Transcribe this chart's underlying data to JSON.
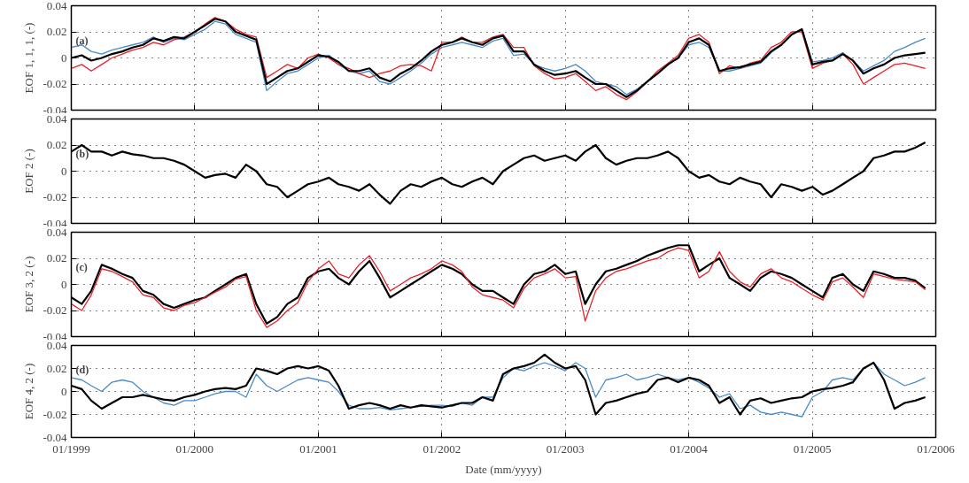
{
  "chart_data": [
    {
      "type": "line",
      "ylabel": "EOF 1, 1, 1, (-)",
      "annotations": [
        "(a)"
      ],
      "xlim": [
        "1999-01",
        "2006-01"
      ],
      "xticks": [
        {
          "value": "1999-01",
          "label": null
        },
        {
          "value": "2000-01",
          "label": null
        },
        {
          "value": "2001-01",
          "label": null
        },
        {
          "value": "2002-01",
          "label": null
        },
        {
          "value": "2003-01",
          "label": null
        },
        {
          "value": "2004-01",
          "label": null
        },
        {
          "value": "2005-01",
          "label": null
        },
        {
          "value": "2006-01",
          "label": null
        }
      ],
      "ylim": [
        -0.04,
        0.04
      ],
      "yticks": [
        -0.04,
        -0.02,
        0,
        0.02,
        0.04
      ],
      "grid": true,
      "line_style": "solid",
      "tick_labels": "y",
      "x": [
        "1999-01",
        "1999-02",
        "1999-03",
        "1999-04",
        "1999-05",
        "1999-06",
        "1999-07",
        "1999-08",
        "1999-09",
        "1999-10",
        "1999-11",
        "1999-12",
        "2000-01",
        "2000-02",
        "2000-03",
        "2000-04",
        "2000-05",
        "2000-06",
        "2000-07",
        "2000-08",
        "2000-09",
        "2000-10",
        "2000-11",
        "2000-12",
        "2001-01",
        "2001-02",
        "2001-03",
        "2001-04",
        "2001-05",
        "2001-06",
        "2001-07",
        "2001-08",
        "2001-09",
        "2001-10",
        "2001-11",
        "2001-12",
        "2002-01",
        "2002-02",
        "2002-03",
        "2002-04",
        "2002-05",
        "2002-06",
        "2002-07",
        "2002-08",
        "2002-09",
        "2002-10",
        "2002-11",
        "2002-12",
        "2003-01",
        "2003-02",
        "2003-03",
        "2003-04",
        "2003-05",
        "2003-06",
        "2003-07",
        "2003-08",
        "2003-09",
        "2003-10",
        "2003-11",
        "2003-12",
        "2004-01",
        "2004-02",
        "2004-03",
        "2004-04",
        "2004-05",
        "2004-06",
        "2004-07",
        "2004-08",
        "2004-09",
        "2004-10",
        "2004-11",
        "2004-12",
        "2005-01",
        "2005-02",
        "2005-03",
        "2005-04",
        "2005-05",
        "2005-06",
        "2005-07",
        "2005-08",
        "2005-09",
        "2005-10",
        "2005-11",
        "2005-12"
      ],
      "series": [
        {
          "color": "#4a8ac8",
          "values": [
            0.008,
            0.01,
            0.005,
            0.003,
            0.006,
            0.008,
            0.01,
            0.012,
            0.016,
            0.012,
            0.015,
            0.014,
            0.018,
            0.022,
            0.028,
            0.026,
            0.018,
            0.015,
            0.012,
            -0.025,
            -0.018,
            -0.012,
            -0.01,
            -0.005,
            0.0,
            0.002,
            -0.005,
            -0.01,
            -0.012,
            -0.01,
            -0.018,
            -0.02,
            -0.015,
            -0.01,
            -0.004,
            0.003,
            0.008,
            0.01,
            0.012,
            0.01,
            0.008,
            0.013,
            0.015,
            0.002,
            0.003,
            -0.005,
            -0.008,
            -0.01,
            -0.008,
            -0.005,
            -0.01,
            -0.018,
            -0.02,
            -0.022,
            -0.028,
            -0.024,
            -0.018,
            -0.012,
            -0.005,
            0.0,
            0.01,
            0.012,
            0.008,
            -0.01,
            -0.01,
            -0.008,
            -0.006,
            -0.004,
            0.004,
            0.01,
            0.018,
            0.022,
            -0.003,
            -0.002,
            0.0,
            0.004,
            -0.002,
            -0.01,
            -0.006,
            -0.002,
            0.005,
            0.008,
            0.012,
            0.015
          ]
        },
        {
          "color": "#e8222a",
          "values": [
            -0.008,
            -0.005,
            -0.01,
            -0.005,
            0.0,
            0.003,
            0.006,
            0.008,
            0.012,
            0.01,
            0.014,
            0.016,
            0.02,
            0.026,
            0.031,
            0.028,
            0.022,
            0.018,
            0.016,
            -0.015,
            -0.01,
            -0.005,
            -0.008,
            0.0,
            0.003,
            0.0,
            -0.005,
            -0.008,
            -0.012,
            -0.015,
            -0.012,
            -0.01,
            -0.006,
            -0.005,
            -0.006,
            -0.01,
            0.012,
            0.012,
            0.016,
            0.012,
            0.012,
            0.016,
            0.018,
            0.008,
            0.008,
            -0.006,
            -0.012,
            -0.016,
            -0.015,
            -0.012,
            -0.018,
            -0.025,
            -0.022,
            -0.028,
            -0.032,
            -0.026,
            -0.018,
            -0.01,
            -0.004,
            0.002,
            0.015,
            0.018,
            0.012,
            -0.012,
            -0.006,
            -0.008,
            -0.004,
            -0.002,
            0.008,
            0.012,
            0.02,
            0.02,
            -0.008,
            -0.004,
            -0.002,
            0.003,
            -0.005,
            -0.02,
            -0.015,
            -0.01,
            -0.005,
            -0.004,
            -0.006,
            -0.008
          ]
        },
        {
          "color": "#000000",
          "values": [
            0.0,
            0.002,
            -0.002,
            0.0,
            0.003,
            0.005,
            0.008,
            0.01,
            0.015,
            0.013,
            0.016,
            0.015,
            0.02,
            0.025,
            0.03,
            0.028,
            0.02,
            0.017,
            0.014,
            -0.02,
            -0.015,
            -0.01,
            -0.008,
            -0.003,
            0.002,
            0.001,
            -0.003,
            -0.01,
            -0.01,
            -0.008,
            -0.015,
            -0.018,
            -0.012,
            -0.008,
            -0.002,
            0.005,
            0.01,
            0.012,
            0.015,
            0.012,
            0.01,
            0.015,
            0.017,
            0.005,
            0.005,
            -0.005,
            -0.01,
            -0.013,
            -0.012,
            -0.01,
            -0.015,
            -0.02,
            -0.02,
            -0.025,
            -0.03,
            -0.025,
            -0.018,
            -0.012,
            -0.005,
            0.0,
            0.012,
            0.015,
            0.01,
            -0.01,
            -0.008,
            -0.007,
            -0.005,
            -0.003,
            0.005,
            0.01,
            0.018,
            0.022,
            -0.005,
            -0.003,
            -0.002,
            0.003,
            -0.002,
            -0.012,
            -0.008,
            -0.005,
            0.0,
            0.002,
            0.003,
            0.004
          ]
        }
      ]
    },
    {
      "type": "line",
      "ylabel": "EOF 2 (-)",
      "annotations": [
        "(b)"
      ],
      "xlim": [
        "1999-01",
        "2006-01"
      ],
      "xticks": [
        {
          "value": "1999-01",
          "label": null
        },
        {
          "value": "2000-01",
          "label": null
        },
        {
          "value": "2001-01",
          "label": null
        },
        {
          "value": "2002-01",
          "label": null
        },
        {
          "value": "2003-01",
          "label": null
        },
        {
          "value": "2004-01",
          "label": null
        },
        {
          "value": "2005-01",
          "label": null
        },
        {
          "value": "2006-01",
          "label": null
        }
      ],
      "ylim": [
        -0.04,
        0.04
      ],
      "yticks": [
        -0.04,
        -0.02,
        0,
        0.02,
        0.04
      ],
      "grid": true,
      "line_style": "solid",
      "tick_labels": "y",
      "x": [
        "1999-01",
        "1999-02",
        "1999-03",
        "1999-04",
        "1999-05",
        "1999-06",
        "1999-07",
        "1999-08",
        "1999-09",
        "1999-10",
        "1999-11",
        "1999-12",
        "2000-01",
        "2000-02",
        "2000-03",
        "2000-04",
        "2000-05",
        "2000-06",
        "2000-07",
        "2000-08",
        "2000-09",
        "2000-10",
        "2000-11",
        "2000-12",
        "2001-01",
        "2001-02",
        "2001-03",
        "2001-04",
        "2001-05",
        "2001-06",
        "2001-07",
        "2001-08",
        "2001-09",
        "2001-10",
        "2001-11",
        "2001-12",
        "2002-01",
        "2002-02",
        "2002-03",
        "2002-04",
        "2002-05",
        "2002-06",
        "2002-07",
        "2002-08",
        "2002-09",
        "2002-10",
        "2002-11",
        "2002-12",
        "2003-01",
        "2003-02",
        "2003-03",
        "2003-04",
        "2003-05",
        "2003-06",
        "2003-07",
        "2003-08",
        "2003-09",
        "2003-10",
        "2003-11",
        "2003-12",
        "2004-01",
        "2004-02",
        "2004-03",
        "2004-04",
        "2004-05",
        "2004-06",
        "2004-07",
        "2004-08",
        "2004-09",
        "2004-10",
        "2004-11",
        "2004-12",
        "2005-01",
        "2005-02",
        "2005-03",
        "2005-04",
        "2005-05",
        "2005-06",
        "2005-07",
        "2005-08",
        "2005-09",
        "2005-10",
        "2005-11",
        "2005-12"
      ],
      "series": [
        {
          "color": "#000000",
          "values": [
            0.015,
            0.02,
            0.015,
            0.015,
            0.012,
            0.015,
            0.013,
            0.012,
            0.01,
            0.01,
            0.008,
            0.005,
            0.0,
            -0.005,
            -0.003,
            -0.002,
            -0.005,
            0.005,
            0.0,
            -0.01,
            -0.012,
            -0.02,
            -0.015,
            -0.01,
            -0.008,
            -0.005,
            -0.01,
            -0.012,
            -0.015,
            -0.01,
            -0.018,
            -0.025,
            -0.015,
            -0.01,
            -0.012,
            -0.008,
            -0.005,
            -0.01,
            -0.012,
            -0.008,
            -0.005,
            -0.01,
            0.0,
            0.005,
            0.01,
            0.012,
            0.008,
            0.01,
            0.012,
            0.008,
            0.015,
            0.02,
            0.01,
            0.005,
            0.008,
            0.01,
            0.01,
            0.012,
            0.015,
            0.01,
            0.0,
            -0.005,
            -0.003,
            -0.008,
            -0.01,
            -0.005,
            -0.008,
            -0.01,
            -0.02,
            -0.01,
            -0.012,
            -0.015,
            -0.012,
            -0.018,
            -0.015,
            -0.01,
            -0.005,
            0.0,
            0.01,
            0.012,
            0.015,
            0.015,
            0.018,
            0.022
          ]
        }
      ]
    },
    {
      "type": "line",
      "ylabel": "EOF 3, 2 (-)",
      "annotations": [
        "(c)"
      ],
      "xlim": [
        "1999-01",
        "2006-01"
      ],
      "xticks": [
        {
          "value": "1999-01",
          "label": null
        },
        {
          "value": "2000-01",
          "label": null
        },
        {
          "value": "2001-01",
          "label": null
        },
        {
          "value": "2002-01",
          "label": null
        },
        {
          "value": "2003-01",
          "label": null
        },
        {
          "value": "2004-01",
          "label": null
        },
        {
          "value": "2005-01",
          "label": null
        },
        {
          "value": "2006-01",
          "label": null
        }
      ],
      "ylim": [
        -0.04,
        0.04
      ],
      "yticks": [
        -0.04,
        -0.02,
        0,
        0.02,
        0.04
      ],
      "grid": true,
      "line_style": "solid",
      "tick_labels": "y",
      "x": [
        "1999-01",
        "1999-02",
        "1999-03",
        "1999-04",
        "1999-05",
        "1999-06",
        "1999-07",
        "1999-08",
        "1999-09",
        "1999-10",
        "1999-11",
        "1999-12",
        "2000-01",
        "2000-02",
        "2000-03",
        "2000-04",
        "2000-05",
        "2000-06",
        "2000-07",
        "2000-08",
        "2000-09",
        "2000-10",
        "2000-11",
        "2000-12",
        "2001-01",
        "2001-02",
        "2001-03",
        "2001-04",
        "2001-05",
        "2001-06",
        "2001-07",
        "2001-08",
        "2001-09",
        "2001-10",
        "2001-11",
        "2001-12",
        "2002-01",
        "2002-02",
        "2002-03",
        "2002-04",
        "2002-05",
        "2002-06",
        "2002-07",
        "2002-08",
        "2002-09",
        "2002-10",
        "2002-11",
        "2002-12",
        "2003-01",
        "2003-02",
        "2003-03",
        "2003-04",
        "2003-05",
        "2003-06",
        "2003-07",
        "2003-08",
        "2003-09",
        "2003-10",
        "2003-11",
        "2003-12",
        "2004-01",
        "2004-02",
        "2004-03",
        "2004-04",
        "2004-05",
        "2004-06",
        "2004-07",
        "2004-08",
        "2004-09",
        "2004-10",
        "2004-11",
        "2004-12",
        "2005-01",
        "2005-02",
        "2005-03",
        "2005-04",
        "2005-05",
        "2005-06",
        "2005-07",
        "2005-08",
        "2005-09",
        "2005-10",
        "2005-11",
        "2005-12"
      ],
      "series": [
        {
          "color": "#000000",
          "values": [
            -0.01,
            -0.015,
            -0.005,
            0.015,
            0.012,
            0.008,
            0.005,
            -0.005,
            -0.008,
            -0.015,
            -0.018,
            -0.015,
            -0.012,
            -0.01,
            -0.005,
            0.0,
            0.005,
            0.008,
            -0.015,
            -0.03,
            -0.025,
            -0.015,
            -0.01,
            0.005,
            0.01,
            0.012,
            0.005,
            0.0,
            0.01,
            0.018,
            0.005,
            -0.01,
            -0.005,
            0.0,
            0.005,
            0.01,
            0.015,
            0.012,
            0.008,
            0.0,
            -0.005,
            -0.005,
            -0.01,
            -0.015,
            0.0,
            0.008,
            0.01,
            0.015,
            0.008,
            0.01,
            -0.015,
            0.0,
            0.01,
            0.012,
            0.015,
            0.018,
            0.022,
            0.025,
            0.028,
            0.03,
            0.03,
            0.01,
            0.015,
            0.02,
            0.005,
            0.0,
            -0.005,
            0.005,
            0.01,
            0.008,
            0.005,
            0.0,
            -0.005,
            -0.01,
            0.005,
            0.008,
            0.0,
            -0.005,
            0.01,
            0.008,
            0.005,
            0.005,
            0.003,
            -0.003
          ]
        },
        {
          "color": "#e8222a",
          "values": [
            -0.015,
            -0.02,
            -0.008,
            0.012,
            0.01,
            0.006,
            0.002,
            -0.008,
            -0.01,
            -0.018,
            -0.02,
            -0.016,
            -0.014,
            -0.01,
            -0.006,
            -0.002,
            0.004,
            0.006,
            -0.02,
            -0.033,
            -0.028,
            -0.02,
            -0.014,
            0.002,
            0.012,
            0.018,
            0.008,
            0.005,
            0.015,
            0.022,
            0.01,
            -0.005,
            0.0,
            0.005,
            0.008,
            0.012,
            0.018,
            0.015,
            0.01,
            -0.002,
            -0.008,
            -0.01,
            -0.012,
            -0.018,
            -0.003,
            0.005,
            0.008,
            0.012,
            0.005,
            0.006,
            -0.028,
            -0.005,
            0.005,
            0.01,
            0.012,
            0.015,
            0.018,
            0.02,
            0.025,
            0.028,
            0.026,
            0.005,
            0.01,
            0.025,
            0.01,
            0.002,
            -0.002,
            0.008,
            0.012,
            0.005,
            0.002,
            -0.003,
            -0.008,
            -0.012,
            0.002,
            0.005,
            -0.002,
            -0.01,
            0.008,
            0.006,
            0.004,
            0.003,
            0.002,
            -0.004
          ]
        }
      ]
    },
    {
      "type": "line",
      "ylabel": "EOF 4, 2 (-)",
      "xlabel": "Date (mm/yyyy)",
      "annotations": [
        "(d)"
      ],
      "xlim": [
        "1999-01",
        "2006-01"
      ],
      "xticks": [
        {
          "value": "1999-01",
          "label": "01/1999"
        },
        {
          "value": "2000-01",
          "label": "01/2000"
        },
        {
          "value": "2001-01",
          "label": "01/2001"
        },
        {
          "value": "2002-01",
          "label": "01/2002"
        },
        {
          "value": "2003-01",
          "label": "01/2003"
        },
        {
          "value": "2004-01",
          "label": "01/2004"
        },
        {
          "value": "2005-01",
          "label": "01/2005"
        },
        {
          "value": "2006-01",
          "label": "01/2006"
        }
      ],
      "ylim": [
        -0.04,
        0.04
      ],
      "yticks": [
        -0.04,
        -0.02,
        0,
        0.02,
        0.04
      ],
      "grid": true,
      "line_style": "solid",
      "x": [
        "1999-01",
        "1999-02",
        "1999-03",
        "1999-04",
        "1999-05",
        "1999-06",
        "1999-07",
        "1999-08",
        "1999-09",
        "1999-10",
        "1999-11",
        "1999-12",
        "2000-01",
        "2000-02",
        "2000-03",
        "2000-04",
        "2000-05",
        "2000-06",
        "2000-07",
        "2000-08",
        "2000-09",
        "2000-10",
        "2000-11",
        "2000-12",
        "2001-01",
        "2001-02",
        "2001-03",
        "2001-04",
        "2001-05",
        "2001-06",
        "2001-07",
        "2001-08",
        "2001-09",
        "2001-10",
        "2001-11",
        "2001-12",
        "2002-01",
        "2002-02",
        "2002-03",
        "2002-04",
        "2002-05",
        "2002-06",
        "2002-07",
        "2002-08",
        "2002-09",
        "2002-10",
        "2002-11",
        "2002-12",
        "2003-01",
        "2003-02",
        "2003-03",
        "2003-04",
        "2003-05",
        "2003-06",
        "2003-07",
        "2003-08",
        "2003-09",
        "2003-10",
        "2003-11",
        "2003-12",
        "2004-01",
        "2004-02",
        "2004-03",
        "2004-04",
        "2004-05",
        "2004-06",
        "2004-07",
        "2004-08",
        "2004-09",
        "2004-10",
        "2004-11",
        "2004-12",
        "2005-01",
        "2005-02",
        "2005-03",
        "2005-04",
        "2005-05",
        "2005-06",
        "2005-07",
        "2005-08",
        "2005-09",
        "2005-10",
        "2005-11",
        "2005-12"
      ],
      "series": [
        {
          "color": "#4a8ac8",
          "values": [
            0.012,
            0.01,
            0.005,
            0.0,
            0.008,
            0.01,
            0.008,
            0.0,
            -0.005,
            -0.01,
            -0.012,
            -0.008,
            -0.008,
            -0.005,
            -0.002,
            0.0,
            0.0,
            -0.005,
            0.015,
            0.005,
            0.0,
            0.005,
            0.01,
            0.012,
            0.01,
            0.008,
            0.0,
            -0.012,
            -0.015,
            -0.015,
            -0.014,
            -0.016,
            -0.015,
            -0.014,
            -0.013,
            -0.012,
            -0.012,
            -0.013,
            -0.01,
            -0.012,
            -0.005,
            -0.005,
            0.012,
            0.02,
            0.018,
            0.022,
            0.025,
            0.022,
            0.018,
            0.025,
            0.02,
            -0.005,
            0.01,
            0.012,
            0.015,
            0.01,
            0.012,
            0.015,
            0.012,
            0.01,
            0.012,
            0.008,
            0.003,
            -0.005,
            -0.002,
            -0.015,
            -0.012,
            -0.018,
            -0.02,
            -0.018,
            -0.02,
            -0.022,
            -0.005,
            0.0,
            0.01,
            0.012,
            0.01,
            0.02,
            0.025,
            0.015,
            0.01,
            0.005,
            0.008,
            0.012
          ]
        },
        {
          "color": "#000000",
          "values": [
            0.005,
            0.002,
            -0.008,
            -0.015,
            -0.01,
            -0.005,
            -0.005,
            -0.003,
            -0.005,
            -0.007,
            -0.008,
            -0.005,
            -0.003,
            0.0,
            0.002,
            0.003,
            0.002,
            0.005,
            0.02,
            0.018,
            0.015,
            0.02,
            0.022,
            0.02,
            0.022,
            0.018,
            0.005,
            -0.015,
            -0.012,
            -0.01,
            -0.012,
            -0.015,
            -0.012,
            -0.014,
            -0.012,
            -0.013,
            -0.014,
            -0.012,
            -0.01,
            -0.01,
            -0.005,
            -0.008,
            0.015,
            0.02,
            0.022,
            0.025,
            0.032,
            0.025,
            0.02,
            0.022,
            0.01,
            -0.02,
            -0.01,
            -0.008,
            -0.005,
            -0.002,
            0.0,
            0.01,
            0.012,
            0.008,
            0.012,
            0.01,
            0.005,
            -0.01,
            -0.005,
            -0.02,
            -0.008,
            -0.006,
            -0.01,
            -0.008,
            -0.006,
            -0.005,
            0.0,
            0.002,
            0.003,
            0.005,
            0.008,
            0.02,
            0.025,
            0.01,
            -0.015,
            -0.01,
            -0.008,
            -0.005
          ]
        }
      ]
    }
  ]
}
